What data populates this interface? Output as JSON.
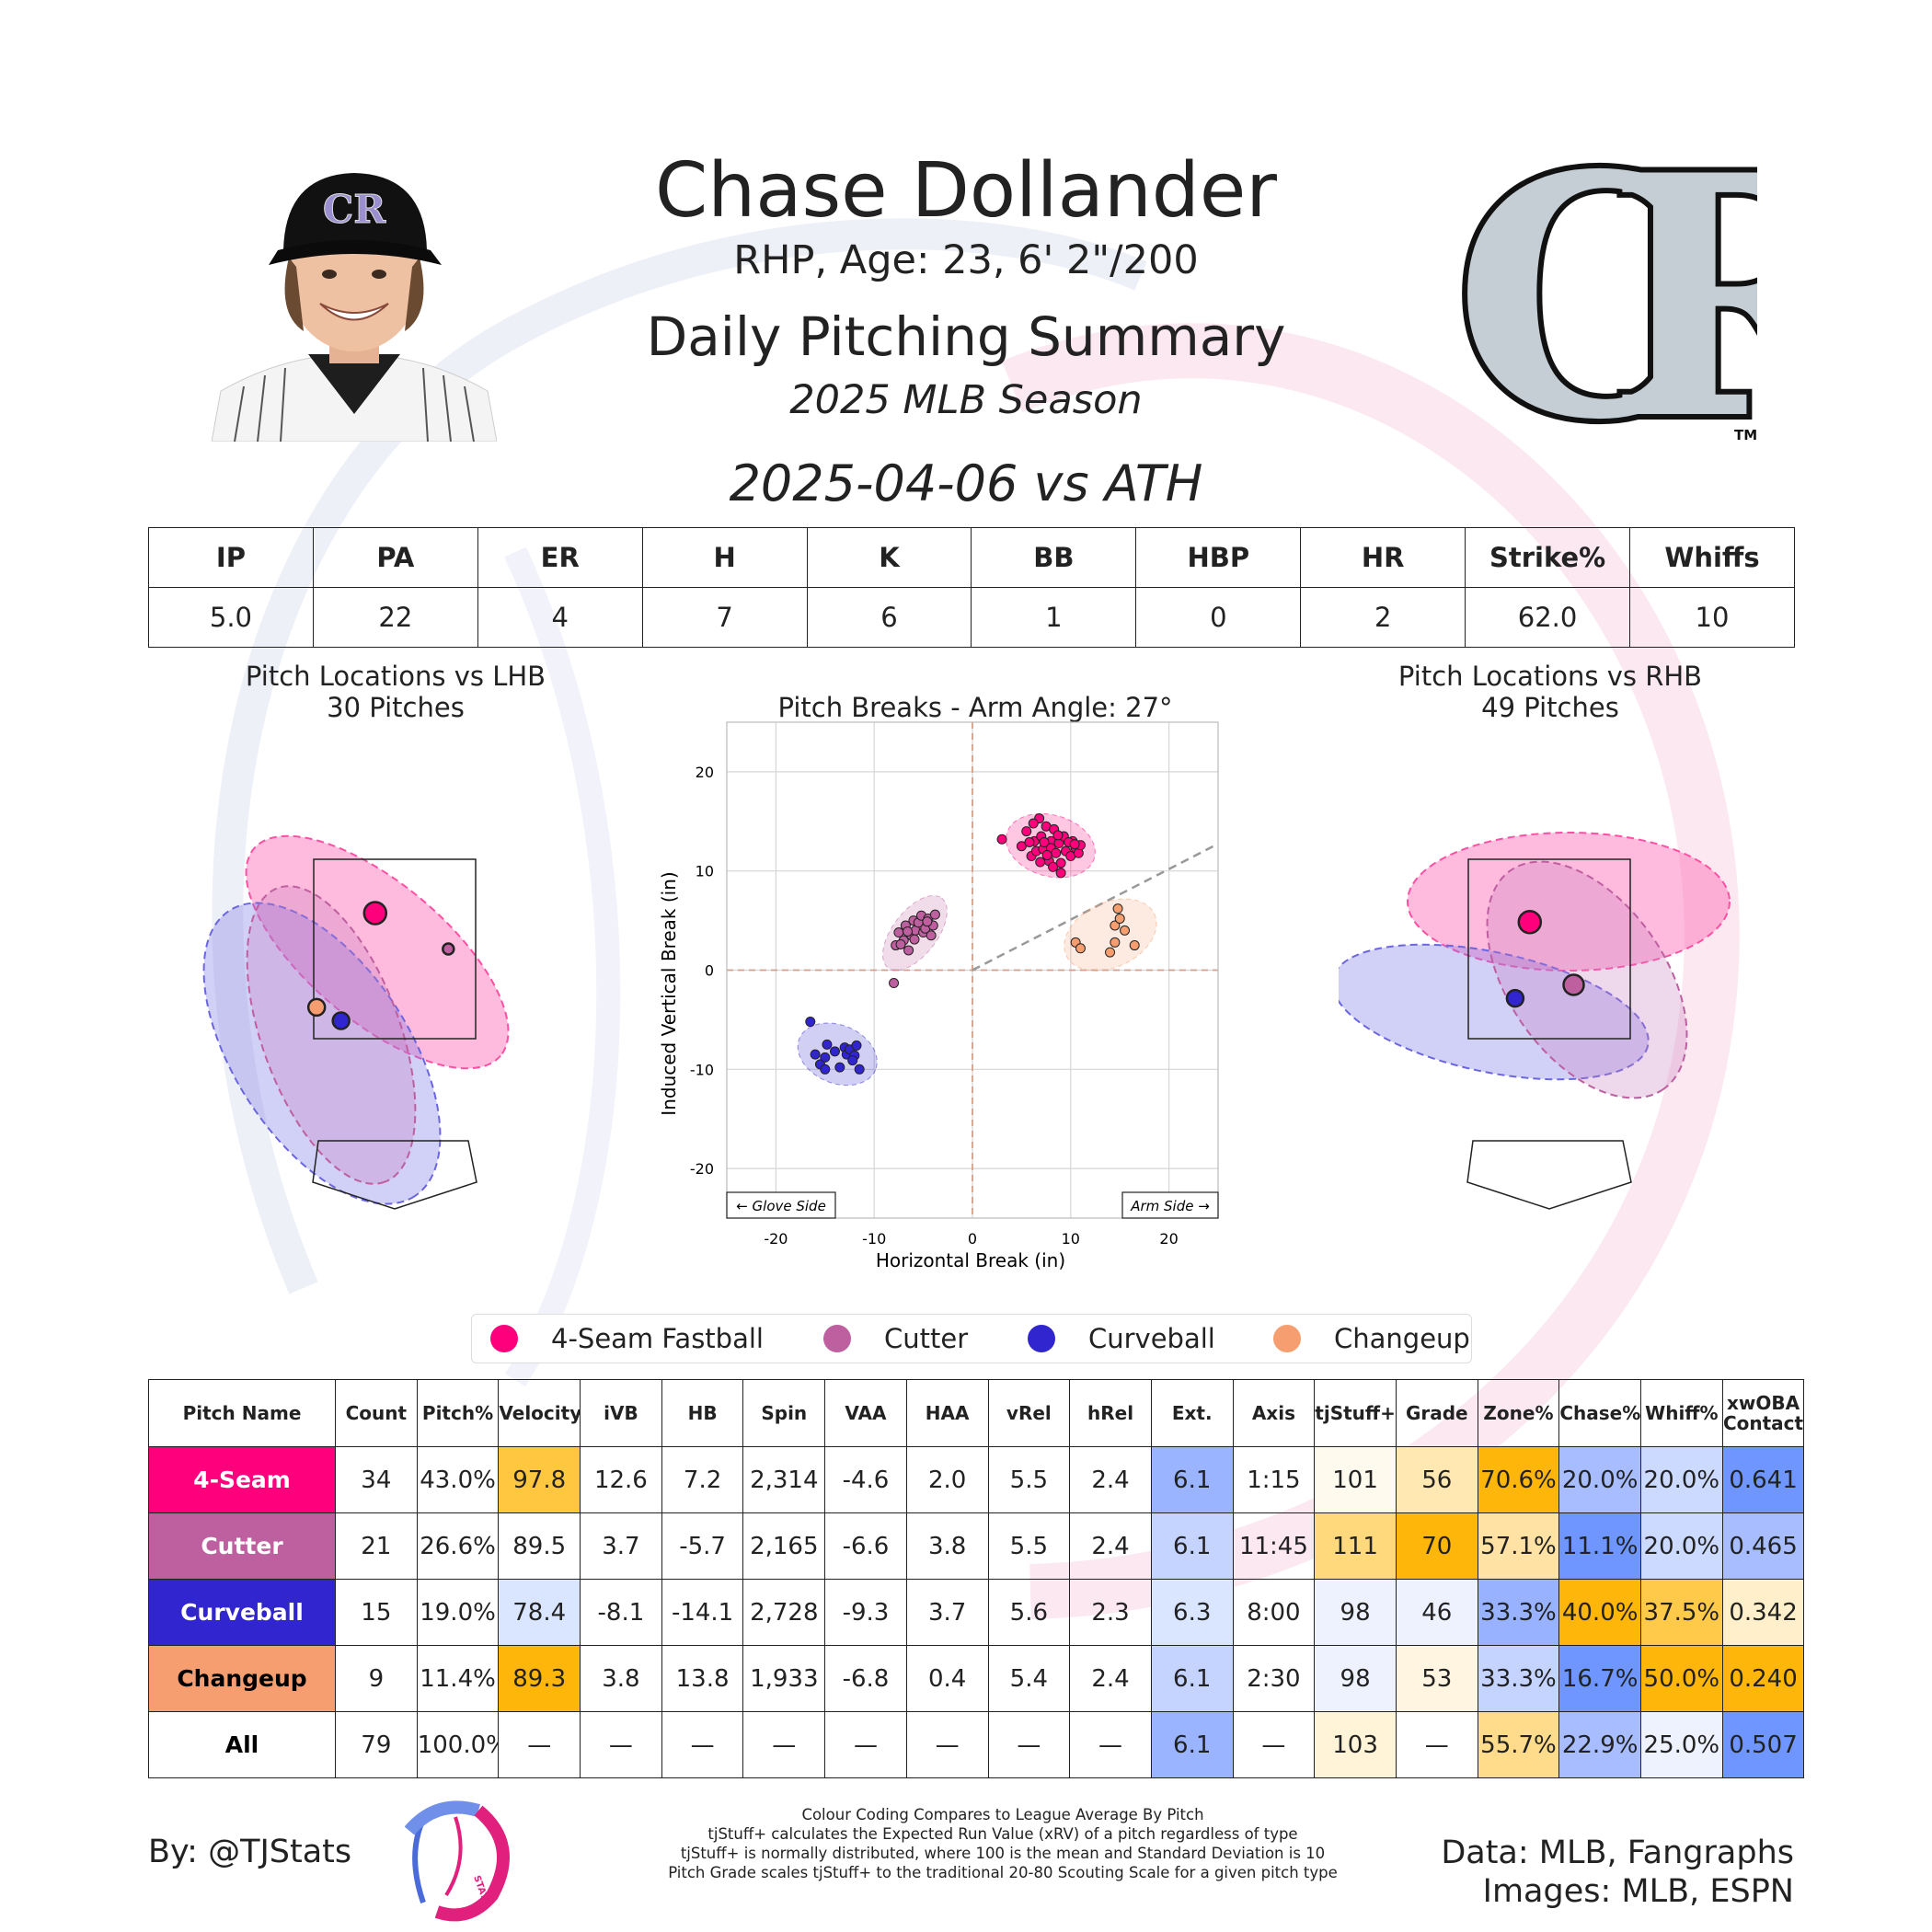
{
  "header": {
    "name": "Chase Dollander",
    "bio": "RHP, Age: 23, 6' 2\"/200",
    "title": "Daily Pitching Summary",
    "season": "2025 MLB Season",
    "game": "2025-04-06 vs ATH"
  },
  "team_logo": {
    "text": "CR",
    "tm": "TM",
    "fill": "#c4ced4",
    "stroke": "#111111"
  },
  "stats_summary": {
    "columns": [
      "IP",
      "PA",
      "ER",
      "H",
      "K",
      "BB",
      "HBP",
      "HR",
      "Strike%",
      "Whiffs"
    ],
    "values": [
      "5.0",
      "22",
      "4",
      "7",
      "6",
      "1",
      "0",
      "2",
      "62.0",
      "10"
    ]
  },
  "colors": {
    "4-Seam Fastball": "#ff007d",
    "Cutter": "#be5fa0",
    "Curveball": "#3025ce",
    "Changeup": "#f79e70"
  },
  "legend": [
    "4-Seam Fastball",
    "Cutter",
    "Curveball",
    "Changeup"
  ],
  "chart_data": [
    {
      "type": "scatter",
      "title": "Pitch Locations vs LHB",
      "subtitle": "30 Pitches",
      "centroids": [
        {
          "pitch": "4-Seam Fastball",
          "x": -0.2,
          "y": 2.9
        },
        {
          "pitch": "Cutter",
          "x": 0.55,
          "y": 2.5
        },
        {
          "pitch": "Curveball",
          "x": -0.55,
          "y": 1.7
        },
        {
          "pitch": "Changeup",
          "x": -0.8,
          "y": 1.85
        }
      ]
    },
    {
      "type": "scatter",
      "title": "Pitch Breaks - Arm Angle: 27°",
      "xlabel": "Horizontal Break (in)",
      "ylabel": "Induced Vertical Break (in)",
      "xlim": [
        -25,
        25
      ],
      "ylim": [
        -25,
        25
      ],
      "xticks": [
        -20,
        -10,
        0,
        10,
        20
      ],
      "yticks": [
        -20,
        -10,
        0,
        10,
        20
      ],
      "grid": true,
      "arm_angle_deg": 27,
      "annotations": [
        "← Glove Side",
        "Arm Side →"
      ],
      "series": [
        {
          "name": "4-Seam Fastball",
          "points": [
            [
              3,
              13.2
            ],
            [
              5,
              12.5
            ],
            [
              5.5,
              14
            ],
            [
              6,
              11.5
            ],
            [
              6.3,
              13
            ],
            [
              6.5,
              12
            ],
            [
              6.8,
              15.3
            ],
            [
              7,
              13.5
            ],
            [
              7.2,
              12.2
            ],
            [
              7.5,
              14.5
            ],
            [
              7.8,
              11
            ],
            [
              8,
              13
            ],
            [
              8,
              12.3
            ],
            [
              8.3,
              14.2
            ],
            [
              8.5,
              11.8
            ],
            [
              8.8,
              12.8
            ],
            [
              9,
              10.8
            ],
            [
              9,
              9.8
            ],
            [
              9.3,
              13.5
            ],
            [
              9.5,
              12
            ],
            [
              10,
              11.5
            ],
            [
              10.2,
              13
            ],
            [
              10.5,
              12.3
            ],
            [
              10.8,
              11.8
            ],
            [
              11,
              12.6
            ],
            [
              7.3,
              12.9
            ],
            [
              6.2,
              14.8
            ],
            [
              8.7,
              13.6
            ],
            [
              5.8,
              12.9
            ],
            [
              7.6,
              11.6
            ],
            [
              9.8,
              12.9
            ],
            [
              6.9,
              10.9
            ],
            [
              8.2,
              10.4
            ],
            [
              10.4,
              12.7
            ]
          ]
        },
        {
          "name": "Cutter",
          "points": [
            [
              -8,
              -1.3
            ],
            [
              -7.8,
              2.5
            ],
            [
              -7.5,
              3.8
            ],
            [
              -7,
              3
            ],
            [
              -6.8,
              4.5
            ],
            [
              -6.5,
              2
            ],
            [
              -6.2,
              3.5
            ],
            [
              -6,
              5
            ],
            [
              -5.8,
              4
            ],
            [
              -5.5,
              4.8
            ],
            [
              -5.2,
              5.5
            ],
            [
              -5,
              3.8
            ],
            [
              -4.8,
              4.2
            ],
            [
              -4.5,
              5.2
            ],
            [
              -4.2,
              3.5
            ],
            [
              -4,
              4.5
            ],
            [
              -3.8,
              5.6
            ],
            [
              -5.9,
              3.1
            ],
            [
              -4.6,
              4.9
            ],
            [
              -6.6,
              3.9
            ],
            [
              -7.3,
              2.6
            ]
          ]
        },
        {
          "name": "Curveball",
          "points": [
            [
              -16.5,
              -5.2
            ],
            [
              -16,
              -8.5
            ],
            [
              -15.5,
              -9.5
            ],
            [
              -15,
              -8.8
            ],
            [
              -15,
              -10
            ],
            [
              -14.8,
              -7.5
            ],
            [
              -14,
              -8.2
            ],
            [
              -13.5,
              -9.8
            ],
            [
              -13,
              -7.8
            ],
            [
              -12.8,
              -8.5
            ],
            [
              -12.5,
              -8
            ],
            [
              -12,
              -8.6
            ],
            [
              -11.5,
              -10
            ],
            [
              -11.8,
              -7.6
            ],
            [
              -12.2,
              -9.1
            ]
          ]
        },
        {
          "name": "Changeup",
          "points": [
            [
              10.5,
              2.8
            ],
            [
              11,
              2.2
            ],
            [
              14,
              1.8
            ],
            [
              14.5,
              2.8
            ],
            [
              14.5,
              4.5
            ],
            [
              14.8,
              6.2
            ],
            [
              15,
              5.2
            ],
            [
              15.5,
              4
            ],
            [
              16.5,
              2.5
            ]
          ]
        }
      ]
    },
    {
      "type": "scatter",
      "title": "Pitch Locations vs RHB",
      "subtitle": "49 Pitches",
      "centroids": [
        {
          "pitch": "4-Seam Fastball",
          "x": -0.2,
          "y": 2.8
        },
        {
          "pitch": "Cutter",
          "x": 0.25,
          "y": 2.1
        },
        {
          "pitch": "Curveball",
          "x": -0.35,
          "y": 1.95
        }
      ]
    },
    {
      "type": "table",
      "columns": [
        "Pitch Name",
        "Count",
        "Pitch%",
        "Velocity",
        "iVB",
        "HB",
        "Spin",
        "VAA",
        "HAA",
        "vRel",
        "hRel",
        "Ext.",
        "Axis",
        "tjStuff+",
        "Grade",
        "Zone%",
        "Chase%",
        "Whiff%",
        "xwOBA Contact"
      ],
      "rows": [
        {
          "pitch": "4-Seam",
          "bg": "#ff007d",
          "fg": "#ffffff",
          "cells": [
            "34",
            "43.0%",
            "97.8",
            "12.6",
            "7.2",
            "2,314",
            "-4.6",
            "2.0",
            "5.5",
            "2.4",
            "6.1",
            "1:15",
            "101",
            "56",
            "70.6%",
            "20.0%",
            "20.0%",
            "0.641"
          ],
          "cell_colors": [
            "",
            "",
            "#ffc73f",
            "",
            "",
            "",
            "",
            "",
            "",
            "",
            "#9ab4ff",
            "",
            "#fffaee",
            "#ffe8b2",
            "#ffb60b",
            "#a7bdff",
            "#ccdaff",
            "#6f96ff"
          ]
        },
        {
          "pitch": "Cutter",
          "bg": "#be5fa0",
          "fg": "#ffffff",
          "cells": [
            "21",
            "26.6%",
            "89.5",
            "3.7",
            "-5.7",
            "2,165",
            "-6.6",
            "3.8",
            "5.5",
            "2.4",
            "6.1",
            "11:45",
            "111",
            "70",
            "57.1%",
            "11.1%",
            "20.0%",
            "0.465"
          ],
          "cell_colors": [
            "",
            "",
            "",
            "",
            "",
            "",
            "",
            "",
            "",
            "",
            "#c4d4ff",
            "",
            "#ffd97b",
            "#ffb60b",
            "#ffe2a4",
            "#6f96ff",
            "#ccdaff",
            "#a7bdff"
          ]
        },
        {
          "pitch": "Curveball",
          "bg": "#3025ce",
          "fg": "#ffffff",
          "cells": [
            "15",
            "19.0%",
            "78.4",
            "-8.1",
            "-14.1",
            "2,728",
            "-9.3",
            "3.7",
            "5.6",
            "2.3",
            "6.3",
            "8:00",
            "98",
            "46",
            "33.3%",
            "40.0%",
            "37.5%",
            "0.342"
          ],
          "cell_colors": [
            "",
            "",
            "#dae5ff",
            "",
            "",
            "",
            "",
            "",
            "",
            "",
            "#dae5ff",
            "",
            "#eef2ff",
            "#eef2ff",
            "#98b2ff",
            "#ffb60b",
            "#ffc94a",
            "#fff0cb"
          ]
        },
        {
          "pitch": "Changeup",
          "bg": "#f79e70",
          "fg": "#000000",
          "cells": [
            "9",
            "11.4%",
            "89.3",
            "3.8",
            "13.8",
            "1,933",
            "-6.8",
            "0.4",
            "5.4",
            "2.4",
            "6.1",
            "2:30",
            "98",
            "53",
            "33.3%",
            "16.7%",
            "50.0%",
            "0.240"
          ],
          "cell_colors": [
            "",
            "",
            "#ffb60b",
            "",
            "",
            "",
            "",
            "",
            "",
            "",
            "#c4d4ff",
            "",
            "#eef2ff",
            "#fff5e0",
            "#c4d4ff",
            "#6f96ff",
            "#ffb60b",
            "#ffb60b"
          ]
        },
        {
          "pitch": "All",
          "bg": "#ffffff",
          "fg": "#000000",
          "cells": [
            "79",
            "100.0%",
            "—",
            "—",
            "—",
            "—",
            "—",
            "—",
            "—",
            "—",
            "6.1",
            "—",
            "103",
            "—",
            "55.7%",
            "22.9%",
            "25.0%",
            "0.507"
          ],
          "cell_colors": [
            "",
            "",
            "",
            "",
            "",
            "",
            "",
            "",
            "",
            "",
            "#9ab4ff",
            "",
            "#fff3d8",
            "",
            "#ffdc8c",
            "#a7bdff",
            "#eef2ff",
            "#6f96ff"
          ]
        }
      ]
    }
  ],
  "footer": {
    "by": "By: @TJStats",
    "logo_text": "STATS",
    "notes": [
      "Colour Coding Compares to League Average By Pitch",
      "tjStuff+ calculates the Expected Run Value (xRV) of a pitch regardless of type",
      "tjStuff+ is normally distributed, where 100 is the mean and Standard Deviation is 10",
      "Pitch Grade scales tjStuff+ to the traditional 20-80 Scouting Scale for a given pitch type"
    ],
    "data_credit": "Data: MLB, Fangraphs",
    "images_credit": "Images: MLB, ESPN"
  }
}
